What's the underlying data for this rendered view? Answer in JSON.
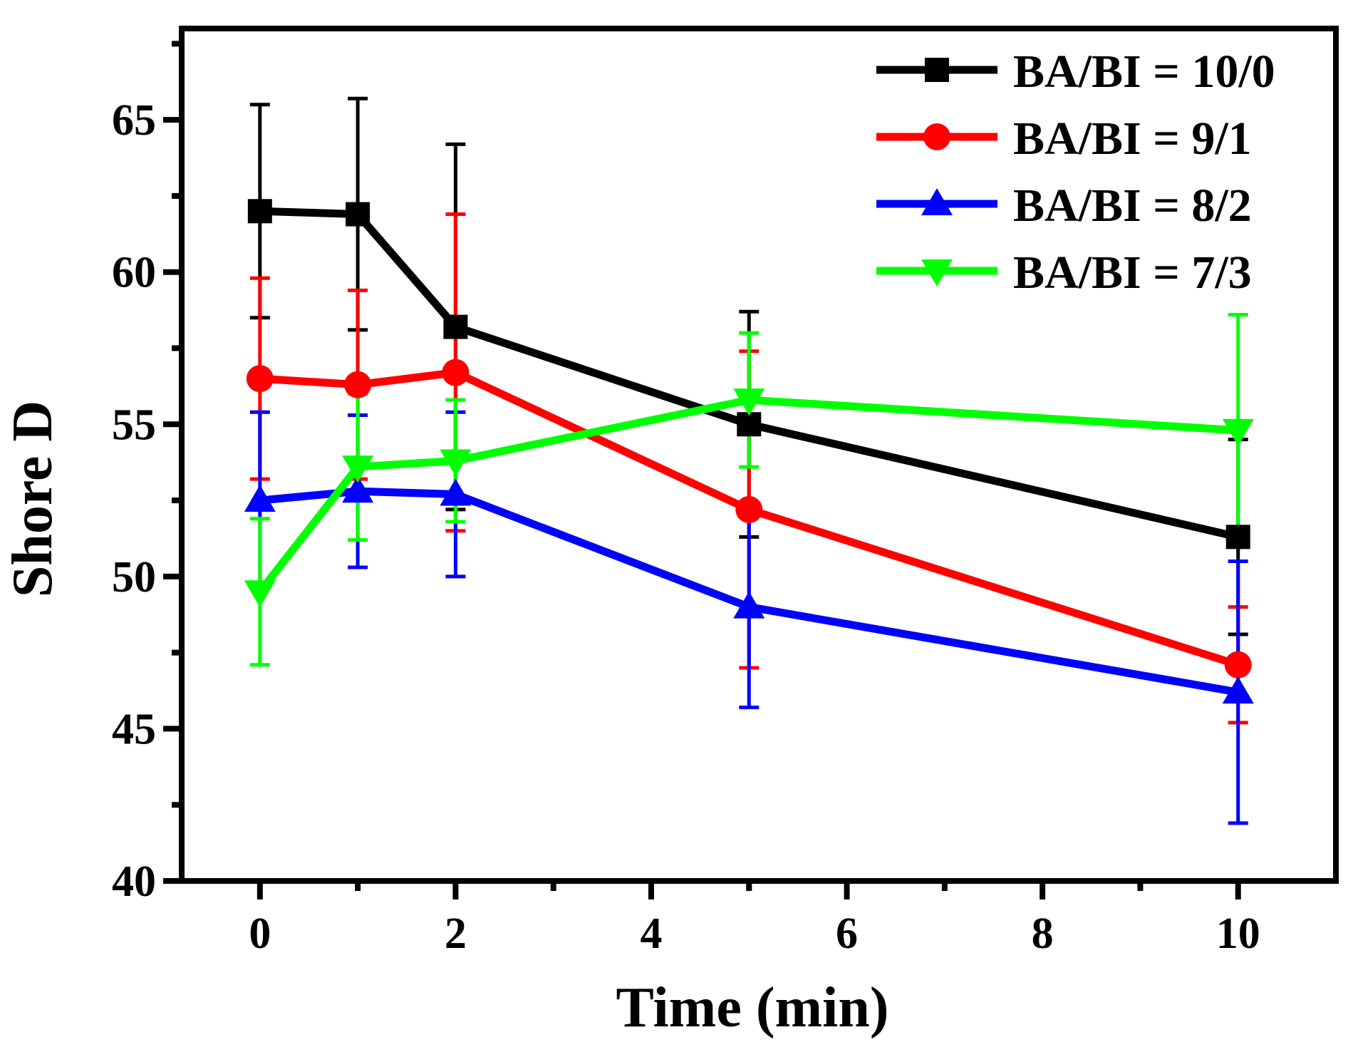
{
  "chart_data": {
    "type": "line",
    "title": "",
    "xlabel": "Time (min)",
    "ylabel": "Shore D",
    "xlim": [
      -0.8,
      11
    ],
    "ylim": [
      40,
      68
    ],
    "x_ticks": [
      0,
      2,
      4,
      6,
      8,
      10
    ],
    "x_tick_labels": [
      "0",
      "2",
      "4",
      "6",
      "8",
      "10"
    ],
    "y_ticks": [
      40,
      45,
      50,
      55,
      60,
      65
    ],
    "y_tick_labels": [
      "40",
      "45",
      "50",
      "55",
      "60",
      "65"
    ],
    "x": [
      0,
      1,
      2,
      5,
      10
    ],
    "legend_position": "top-right",
    "grid": false,
    "series": [
      {
        "name": "BA/BI = 10/0",
        "color": "#000000",
        "marker": "square",
        "values": [
          62.0,
          61.9,
          58.2,
          55.0,
          51.3
        ],
        "errors": [
          3.5,
          3.8,
          6.0,
          3.7,
          3.2
        ]
      },
      {
        "name": "BA/BI = 9/1",
        "color": "#ff0000",
        "marker": "circle",
        "values": [
          56.5,
          56.3,
          56.7,
          52.2,
          47.1
        ],
        "errors": [
          3.3,
          3.1,
          5.2,
          5.2,
          1.9
        ]
      },
      {
        "name": "BA/BI = 8/2",
        "color": "#0000ff",
        "marker": "triangle-up",
        "values": [
          52.5,
          52.8,
          52.7,
          49.0,
          46.2
        ],
        "errors": [
          2.9,
          2.5,
          2.7,
          3.3,
          4.3
        ]
      },
      {
        "name": "BA/BI = 7/3",
        "color": "#00ff00",
        "marker": "triangle-down",
        "values": [
          49.5,
          53.6,
          53.8,
          55.8,
          54.8
        ],
        "errors": [
          2.4,
          2.4,
          2.0,
          2.2,
          3.8
        ]
      }
    ]
  }
}
